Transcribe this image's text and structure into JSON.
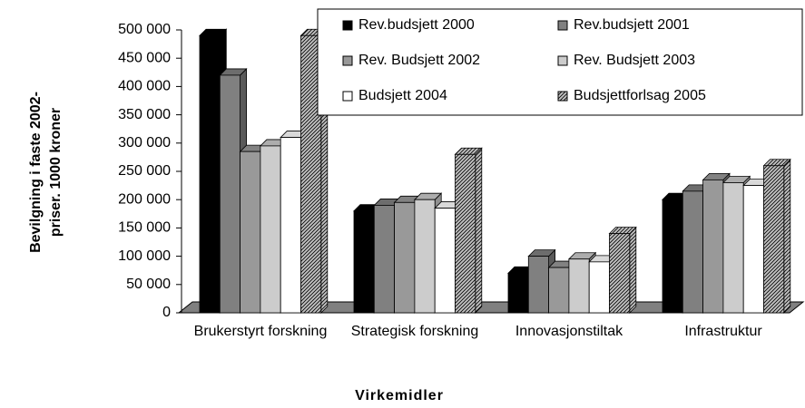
{
  "chart_data": {
    "type": "bar3d",
    "ylabel": [
      "Bevilgning i faste 2002-",
      "priser. 1000 kroner"
    ],
    "xlabel": "Virkemidler",
    "categories": [
      "Brukerstyrt forskning",
      "Strategisk forskning",
      "Innovasjonstiltak",
      "Infrastruktur"
    ],
    "series": [
      {
        "name": "Rev.budsjett 2000",
        "color": "#000000",
        "values": [
          490000,
          180000,
          70000,
          200000
        ]
      },
      {
        "name": "Rev.budsjett 2001",
        "color": "#808080",
        "values": [
          420000,
          190000,
          100000,
          215000
        ]
      },
      {
        "name": "Rev. Budsjett 2002",
        "color": "#999999",
        "values": [
          285000,
          195000,
          80000,
          235000
        ]
      },
      {
        "name": "Rev. Budsjett 2003",
        "color": "#cccccc",
        "values": [
          295000,
          200000,
          95000,
          230000
        ]
      },
      {
        "name": "Budsjett 2004",
        "color": "#ffffff",
        "values": [
          310000,
          185000,
          90000,
          225000
        ]
      },
      {
        "name": "Budsjettforlsag 2005",
        "color": "#c0c0c0",
        "hatch": true,
        "values": [
          490000,
          280000,
          140000,
          260000
        ]
      }
    ],
    "ylim": [
      0,
      500000
    ],
    "yticks": [
      0,
      {
        "value": 50000,
        "label": "50 000"
      },
      {
        "value": 100000,
        "label": "100 000"
      },
      {
        "value": 150000,
        "label": "150 000"
      },
      {
        "value": 200000,
        "label": "200 000"
      },
      {
        "value": 250000,
        "label": "250 000"
      },
      {
        "value": 300000,
        "label": "300 000"
      },
      {
        "value": 350000,
        "label": "350 000"
      },
      {
        "value": 400000,
        "label": "400 000"
      },
      {
        "value": 450000,
        "label": "450 000"
      },
      {
        "value": 500000,
        "label": "500 000"
      }
    ],
    "legend": "top-right"
  }
}
